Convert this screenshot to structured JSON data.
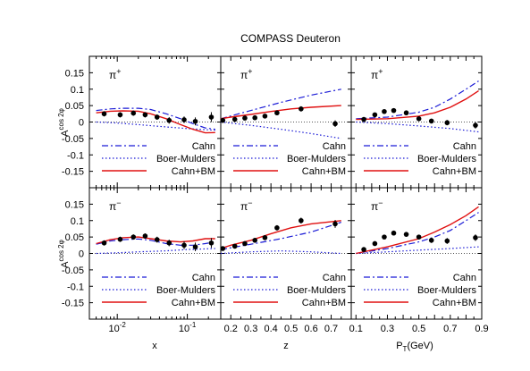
{
  "title": "COMPASS Deuteron",
  "ylabel_main": "A",
  "ylabel_sup": "cos 2φ",
  "xlabels": [
    "x",
    "z",
    "P",
    "T",
    "(GeV)"
  ],
  "colors": {
    "cahn": "#1a1ad6",
    "bm": "#1a1ad6",
    "cahn_bm": "#e01010",
    "data": "#000000",
    "zero": "#555555"
  },
  "legend": [
    "Cahn",
    "Boer-Mulders",
    "Cahn+BM"
  ],
  "chart_data": [
    {
      "type": "line",
      "panel": "x",
      "row": "pi+",
      "label": "π",
      "charge": "+",
      "xscale": "log",
      "xlim": [
        0.004,
        0.3
      ],
      "ylim": [
        -0.2,
        0.2
      ],
      "xticks": [
        {
          "v": 0.01,
          "t": "10",
          "e": "-2"
        },
        {
          "v": 0.1,
          "t": "10",
          "e": "-1"
        }
      ],
      "yticks": [
        "0.15",
        "0.1",
        "0.05",
        "0",
        "-0.05",
        "-0.1",
        "-0.15"
      ],
      "data": {
        "x": [
          0.0065,
          0.011,
          0.017,
          0.025,
          0.037,
          0.055,
          0.09,
          0.13,
          0.22
        ],
        "y": [
          0.025,
          0.022,
          0.027,
          0.022,
          0.015,
          0.005,
          0.007,
          0.002,
          0.015
        ],
        "err": [
          0.008,
          0.008,
          0.008,
          0.008,
          0.008,
          0.01,
          0.01,
          0.012,
          0.015
        ]
      },
      "series": [
        {
          "name": "Cahn",
          "style": "dashdot",
          "x": [
            0.005,
            0.008,
            0.012,
            0.02,
            0.03,
            0.05,
            0.08,
            0.12,
            0.18,
            0.25
          ],
          "y": [
            0.035,
            0.04,
            0.042,
            0.042,
            0.038,
            0.025,
            0.01,
            -0.005,
            -0.018,
            -0.022
          ]
        },
        {
          "name": "Boer-Mulders",
          "style": "dotted",
          "x": [
            0.005,
            0.01,
            0.02,
            0.05,
            0.1,
            0.25
          ],
          "y": [
            0.0,
            -0.003,
            -0.008,
            -0.015,
            -0.02,
            -0.025
          ]
        },
        {
          "name": "Cahn+BM",
          "style": "solid",
          "x": [
            0.005,
            0.008,
            0.012,
            0.02,
            0.03,
            0.05,
            0.08,
            0.12,
            0.18,
            0.25
          ],
          "y": [
            0.028,
            0.033,
            0.034,
            0.033,
            0.025,
            0.01,
            -0.008,
            -0.022,
            -0.033,
            -0.032
          ]
        }
      ]
    },
    {
      "type": "line",
      "panel": "z",
      "row": "pi+",
      "label": "π",
      "charge": "+",
      "xscale": "linear",
      "xlim": [
        0.15,
        0.8
      ],
      "ylim": [
        -0.2,
        0.2
      ],
      "xticks": [
        {
          "v": 0.2,
          "t": "0.2"
        },
        {
          "v": 0.3,
          "t": "0.3"
        },
        {
          "v": 0.4,
          "t": "0.4"
        },
        {
          "v": 0.5,
          "t": "0.5"
        },
        {
          "v": 0.6,
          "t": "0.6"
        },
        {
          "v": 0.7,
          "t": "0.7"
        }
      ],
      "yticks": [],
      "data": {
        "x": [
          0.16,
          0.22,
          0.27,
          0.32,
          0.37,
          0.43,
          0.55,
          0.72
        ],
        "y": [
          0.005,
          0.008,
          0.012,
          0.013,
          0.018,
          0.028,
          0.04,
          -0.005
        ],
        "err": [
          0.005,
          0.005,
          0.005,
          0.006,
          0.006,
          0.007,
          0.008,
          0.01
        ]
      },
      "series": [
        {
          "name": "Cahn",
          "style": "dashdot",
          "x": [
            0.15,
            0.3,
            0.45,
            0.6,
            0.75
          ],
          "y": [
            0.01,
            0.035,
            0.06,
            0.082,
            0.1
          ]
        },
        {
          "name": "Boer-Mulders",
          "style": "dotted",
          "x": [
            0.15,
            0.3,
            0.45,
            0.6,
            0.75
          ],
          "y": [
            0.0,
            -0.01,
            -0.022,
            -0.035,
            -0.05
          ]
        },
        {
          "name": "Cahn+BM",
          "style": "solid",
          "x": [
            0.15,
            0.2,
            0.3,
            0.4,
            0.5,
            0.6,
            0.75
          ],
          "y": [
            0.01,
            0.015,
            0.023,
            0.032,
            0.04,
            0.045,
            0.05
          ]
        }
      ]
    },
    {
      "type": "line",
      "panel": "pt",
      "row": "pi+",
      "label": "π",
      "charge": "+",
      "xscale": "linear",
      "xlim": [
        0.07,
        0.9
      ],
      "ylim": [
        -0.2,
        0.2
      ],
      "xticks": [
        {
          "v": 0.1,
          "t": "0.1"
        },
        {
          "v": 0.3,
          "t": "0.3"
        },
        {
          "v": 0.5,
          "t": "0.5"
        },
        {
          "v": 0.7,
          "t": "0.7"
        },
        {
          "v": 0.9,
          "t": "0.9"
        }
      ],
      "yticks": [],
      "ytick_right": true,
      "data": {
        "x": [
          0.15,
          0.22,
          0.28,
          0.34,
          0.42,
          0.5,
          0.58,
          0.68,
          0.86
        ],
        "y": [
          0.008,
          0.022,
          0.032,
          0.035,
          0.028,
          0.01,
          0.003,
          -0.002,
          -0.01
        ],
        "err": [
          0.005,
          0.005,
          0.005,
          0.006,
          0.006,
          0.007,
          0.007,
          0.008,
          0.01
        ]
      },
      "series": [
        {
          "name": "Cahn",
          "style": "dashdot",
          "x": [
            0.1,
            0.3,
            0.5,
            0.6,
            0.7,
            0.8,
            0.88
          ],
          "y": [
            0.01,
            0.015,
            0.03,
            0.045,
            0.07,
            0.1,
            0.125
          ]
        },
        {
          "name": "Boer-Mulders",
          "style": "dotted",
          "x": [
            0.1,
            0.3,
            0.5,
            0.7,
            0.88
          ],
          "y": [
            0.0,
            -0.005,
            -0.012,
            -0.02,
            -0.03
          ]
        },
        {
          "name": "Cahn+BM",
          "style": "solid",
          "x": [
            0.1,
            0.3,
            0.5,
            0.6,
            0.7,
            0.8,
            0.88
          ],
          "y": [
            0.008,
            0.01,
            0.018,
            0.028,
            0.045,
            0.07,
            0.095
          ]
        }
      ]
    },
    {
      "type": "line",
      "panel": "x",
      "row": "pi-",
      "label": "π",
      "charge": "−",
      "xscale": "log",
      "xlim": [
        0.004,
        0.3
      ],
      "ylim": [
        -0.2,
        0.2
      ],
      "xticks": [
        {
          "v": 0.01,
          "t": "10",
          "e": "-2"
        },
        {
          "v": 0.1,
          "t": "10",
          "e": "-1"
        }
      ],
      "yticks": [
        "0.15",
        "0.1",
        "0.05",
        "0",
        "-0.05",
        "-0.1",
        "-0.15"
      ],
      "data": {
        "x": [
          0.0065,
          0.011,
          0.017,
          0.025,
          0.037,
          0.055,
          0.09,
          0.13,
          0.22
        ],
        "y": [
          0.032,
          0.043,
          0.05,
          0.053,
          0.042,
          0.032,
          0.025,
          0.02,
          0.032
        ],
        "err": [
          0.008,
          0.008,
          0.008,
          0.008,
          0.009,
          0.01,
          0.012,
          0.013,
          0.015
        ]
      },
      "series": [
        {
          "name": "Cahn",
          "style": "dashdot",
          "x": [
            0.005,
            0.008,
            0.012,
            0.02,
            0.03,
            0.05,
            0.08,
            0.12,
            0.18,
            0.25
          ],
          "y": [
            0.028,
            0.038,
            0.042,
            0.044,
            0.04,
            0.03,
            0.025,
            0.025,
            0.03,
            0.035
          ]
        },
        {
          "name": "Boer-Mulders",
          "style": "dotted",
          "x": [
            0.005,
            0.01,
            0.02,
            0.05,
            0.1,
            0.25
          ],
          "y": [
            0.0,
            0.002,
            0.005,
            0.008,
            0.012,
            0.015
          ]
        },
        {
          "name": "Cahn+BM",
          "style": "solid",
          "x": [
            0.005,
            0.008,
            0.012,
            0.02,
            0.03,
            0.05,
            0.08,
            0.12,
            0.18,
            0.25
          ],
          "y": [
            0.03,
            0.042,
            0.048,
            0.05,
            0.045,
            0.038,
            0.035,
            0.038,
            0.045,
            0.045
          ]
        }
      ]
    },
    {
      "type": "line",
      "panel": "z",
      "row": "pi-",
      "label": "π",
      "charge": "−",
      "xscale": "linear",
      "xlim": [
        0.15,
        0.8
      ],
      "ylim": [
        -0.2,
        0.2
      ],
      "xticks": [
        {
          "v": 0.2,
          "t": "0.2"
        },
        {
          "v": 0.3,
          "t": "0.3"
        },
        {
          "v": 0.4,
          "t": "0.4"
        },
        {
          "v": 0.5,
          "t": "0.5"
        },
        {
          "v": 0.6,
          "t": "0.6"
        },
        {
          "v": 0.7,
          "t": "0.7"
        }
      ],
      "yticks": [],
      "data": {
        "x": [
          0.16,
          0.22,
          0.27,
          0.32,
          0.37,
          0.43,
          0.55,
          0.72
        ],
        "y": [
          0.015,
          0.022,
          0.03,
          0.04,
          0.048,
          0.078,
          0.1,
          0.09
        ],
        "err": [
          0.005,
          0.005,
          0.006,
          0.006,
          0.007,
          0.008,
          0.009,
          0.012
        ]
      },
      "series": [
        {
          "name": "Cahn",
          "style": "dashdot",
          "x": [
            0.15,
            0.3,
            0.45,
            0.6,
            0.75
          ],
          "y": [
            0.012,
            0.028,
            0.045,
            0.065,
            0.095
          ]
        },
        {
          "name": "Boer-Mulders",
          "style": "dotted",
          "x": [
            0.15,
            0.3,
            0.45,
            0.6,
            0.75
          ],
          "y": [
            0.0,
            0.005,
            0.008,
            0.005,
            0.0
          ]
        },
        {
          "name": "Cahn+BM",
          "style": "solid",
          "x": [
            0.15,
            0.2,
            0.3,
            0.4,
            0.5,
            0.6,
            0.75
          ],
          "y": [
            0.015,
            0.025,
            0.04,
            0.06,
            0.078,
            0.09,
            0.1
          ]
        }
      ]
    },
    {
      "type": "line",
      "panel": "pt",
      "row": "pi-",
      "label": "π",
      "charge": "−",
      "xscale": "linear",
      "xlim": [
        0.07,
        0.9
      ],
      "ylim": [
        -0.2,
        0.2
      ],
      "xticks": [
        {
          "v": 0.1,
          "t": "0.1"
        },
        {
          "v": 0.3,
          "t": "0.3"
        },
        {
          "v": 0.5,
          "t": "0.5"
        },
        {
          "v": 0.7,
          "t": "0.7"
        },
        {
          "v": 0.9,
          "t": "0.9"
        }
      ],
      "yticks": [],
      "data": {
        "x": [
          0.15,
          0.22,
          0.28,
          0.34,
          0.42,
          0.5,
          0.58,
          0.68,
          0.86
        ],
        "y": [
          0.012,
          0.03,
          0.05,
          0.062,
          0.058,
          0.05,
          0.04,
          0.038,
          0.048
        ],
        "err": [
          0.005,
          0.005,
          0.006,
          0.006,
          0.006,
          0.007,
          0.008,
          0.009,
          0.01
        ]
      },
      "series": [
        {
          "name": "Cahn",
          "style": "dashdot",
          "x": [
            0.1,
            0.3,
            0.5,
            0.6,
            0.7,
            0.8,
            0.88
          ],
          "y": [
            0.0,
            0.015,
            0.035,
            0.05,
            0.07,
            0.1,
            0.125
          ]
        },
        {
          "name": "Boer-Mulders",
          "style": "dotted",
          "x": [
            0.1,
            0.3,
            0.5,
            0.7,
            0.88
          ],
          "y": [
            0.0,
            0.005,
            0.01,
            0.015,
            0.02
          ]
        },
        {
          "name": "Cahn+BM",
          "style": "solid",
          "x": [
            0.1,
            0.3,
            0.5,
            0.6,
            0.7,
            0.8,
            0.88
          ],
          "y": [
            0.0,
            0.02,
            0.045,
            0.065,
            0.088,
            0.115,
            0.142
          ]
        }
      ]
    }
  ]
}
